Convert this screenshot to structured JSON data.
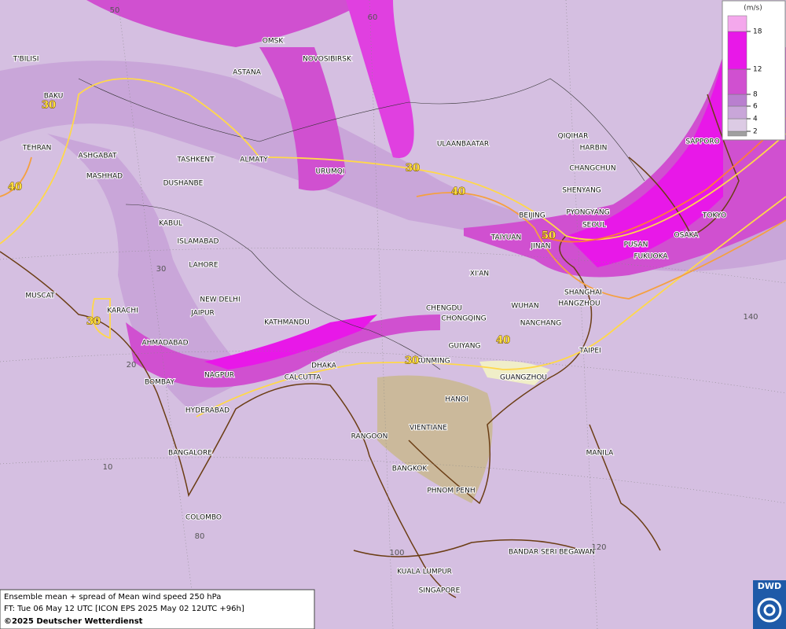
{
  "cities": [
    "OMSK",
    "NOVOSIBIRSK",
    "ASTANA",
    "T'BILISI",
    "BAKU",
    "TEHRAN",
    "ASHGABAT",
    "MASHHAD",
    "TASHKENT",
    "ALMATY",
    "DUSHANBE",
    "URUMQI",
    "ULAANBAATAR",
    "QIQIHAR",
    "HARBIN",
    "CHANGCHUN",
    "SHENYANG",
    "PYONGYANG",
    "SEOUL",
    "BEIJING",
    "TAIYUAN",
    "JINAN",
    "SAPPORO",
    "TOKYO",
    "OSAKA",
    "PUSAN",
    "FUKUOKA",
    "KABUL",
    "ISLAMABAD",
    "LAHORE",
    "NEW DELHI",
    "JAIPUR",
    "MUSCAT",
    "KARACHI",
    "AHMADABAD",
    "BOMBAY",
    "NAGPUR",
    "KATHMANDU",
    "XI'AN",
    "CHENGDU",
    "CHONGQING",
    "WUHAN",
    "SHANGHAI",
    "HANGZHOU",
    "NANCHANG",
    "GUIYANG",
    "TAIPEI",
    "KUNMING",
    "DHAKA",
    "CALCUTTA",
    "GUANGZHOU",
    "HANOI",
    "HYDERABAD",
    "RANGOON",
    "VIENTIANE",
    "MANILA",
    "BANGALORE",
    "BANGKOK",
    "PHNOM PENH",
    "COLOMBO",
    "BANDAR SERI BEGAWAN",
    "KUALA LUMPUR",
    "SINGAPORE"
  ],
  "contour_labels": [
    30,
    30,
    30,
    30,
    40,
    40,
    40,
    50
  ],
  "grid_labels": [
    50,
    60,
    30,
    20,
    10,
    140,
    80,
    100,
    120
  ],
  "legend": {
    "unit": "(m/s)",
    "levels": [
      2,
      4,
      6,
      8,
      12,
      18
    ],
    "colors": [
      "#a0a0a0",
      "#dccbe4",
      "#c9a6d9",
      "#b97fcf",
      "#d050d0",
      "#e818e8",
      "#f4a8ec"
    ]
  },
  "caption": {
    "line1": "Ensemble mean + spread of Mean wind speed 250 hPa",
    "line2": "FT: Tue 06 May 12 UTC [ICON EPS 2025 May 02 12UTC +96h]",
    "copyright": "©2025 Deutscher Wetterdienst"
  },
  "logo": "DWD"
}
